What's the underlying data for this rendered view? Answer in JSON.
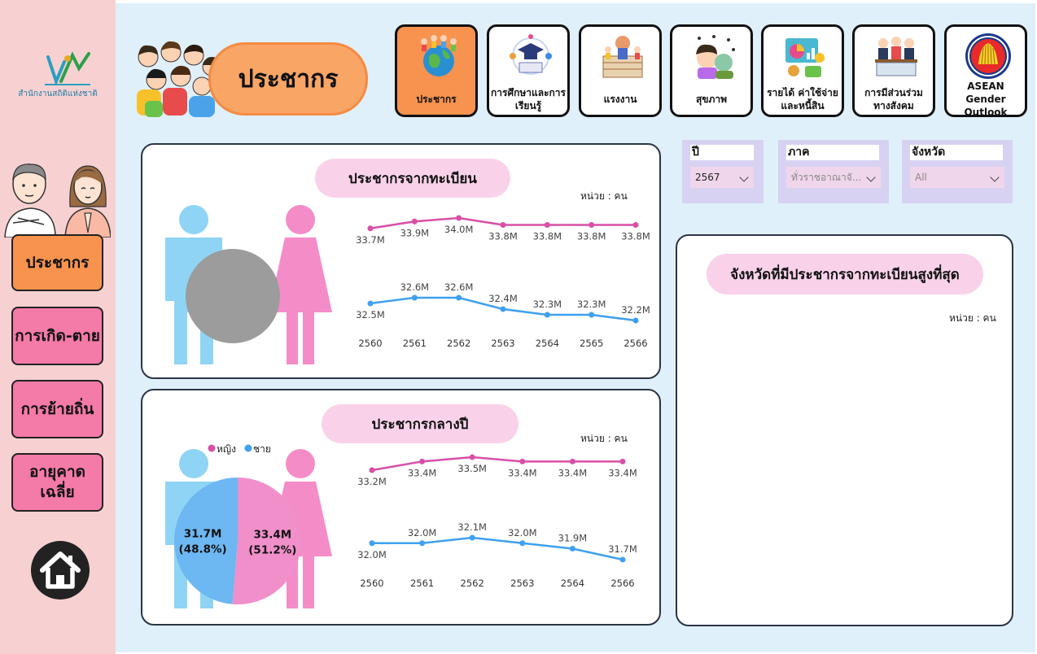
{
  "sidebar": {
    "logo_text": "สำนักงานสถิติแห่งชาติ",
    "nav": [
      {
        "label": "ประชากร",
        "active": true
      },
      {
        "label": "การเกิด-ตาย",
        "active": false
      },
      {
        "label": "การย้ายถิ่น",
        "active": false
      },
      {
        "label": "อายุคาด\nเฉลี่ย",
        "active": false
      }
    ],
    "home_icon": "home-icon"
  },
  "header": {
    "title": "ประชากร",
    "topics": [
      {
        "label": "ประชากร",
        "icon": "globe-people-icon",
        "active": true
      },
      {
        "label": "การศึกษาและการเรียนรู้",
        "icon": "education-icon"
      },
      {
        "label": "แรงงาน",
        "icon": "labor-icon"
      },
      {
        "label": "สุขภาพ",
        "icon": "health-icon"
      },
      {
        "label": "รายได้ ค่าใช้จ่ายและหนี้สิน",
        "icon": "income-icon"
      },
      {
        "label": "การมีส่วนร่วมทางสังคม",
        "icon": "social-participation-icon"
      },
      {
        "label": "ASEAN Gender Outlook",
        "icon": "asean-logo-icon"
      }
    ]
  },
  "filters": {
    "year": {
      "label": "ปี",
      "value": "2567"
    },
    "region": {
      "label": "ภาค",
      "value": "ทั่วราชอาณาจั..."
    },
    "province": {
      "label": "จังหวัด",
      "value": "All"
    }
  },
  "colors": {
    "female": "#d94fa6",
    "male": "#3fa0ef",
    "female_figure": "#f48cc8",
    "male_figure": "#8fd4f4",
    "nav_active": "#f7934e",
    "nav_inactive": "#f47aa8"
  },
  "registered": {
    "title": "ประชากรจากทะเบียน",
    "unit": "หน่วย : คน"
  },
  "midyear": {
    "title": "ประชากรกลางปี",
    "unit": "หน่วย : คน",
    "legend_female": "หญิง",
    "legend_male": "ชาย"
  },
  "top_provinces": {
    "title": "จังหวัดที่มีประชากรจากทะเบียนสูงที่สุด",
    "unit": "หน่วย : คน"
  },
  "chart_data": [
    {
      "type": "line",
      "x": [
        "2560",
        "2561",
        "2562",
        "2563",
        "2564",
        "2565",
        "2566"
      ],
      "series": [
        {
          "name": "หญิง",
          "values": [
            33.7,
            33.9,
            34.0,
            33.8,
            33.8,
            33.8,
            33.8
          ],
          "labels": [
            "33.7M",
            "33.9M",
            "34.0M",
            "33.8M",
            "33.8M",
            "33.8M",
            "33.8M"
          ]
        },
        {
          "name": "ชาย",
          "values": [
            32.5,
            32.6,
            32.6,
            32.4,
            32.3,
            32.3,
            32.2
          ],
          "labels": [
            "32.5M",
            "32.6M",
            "32.6M",
            "32.4M",
            "32.3M",
            "32.3M",
            "32.2M"
          ]
        }
      ]
    },
    {
      "type": "line",
      "x": [
        "2560",
        "2561",
        "2562",
        "2563",
        "2564",
        "2566"
      ],
      "series": [
        {
          "name": "หญิง",
          "values": [
            33.2,
            33.4,
            33.5,
            33.4,
            33.4,
            33.4
          ],
          "labels": [
            "33.2M",
            "33.4M",
            "33.5M",
            "33.4M",
            "33.4M",
            "33.4M"
          ]
        },
        {
          "name": "ชาย",
          "values": [
            32.0,
            32.0,
            32.1,
            32.0,
            31.9,
            31.7
          ],
          "labels": [
            "32.0M",
            "32.0M",
            "32.1M",
            "32.0M",
            "31.9M",
            "31.7M"
          ]
        }
      ]
    },
    {
      "type": "pie",
      "series": [
        {
          "name": "หญิง",
          "value": 33.4,
          "label": "33.4M",
          "pct": "(51.2%)"
        },
        {
          "name": "ชาย",
          "value": 31.7,
          "label": "31.7M",
          "pct": "(48.8%)"
        }
      ]
    }
  ]
}
